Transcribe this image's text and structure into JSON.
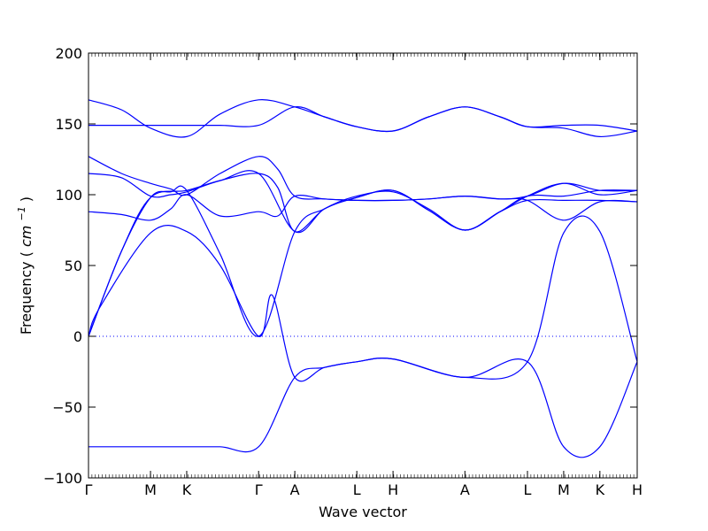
{
  "chart_data": {
    "type": "line",
    "xlabel": "Wave vector",
    "ylabel": "Frequency",
    "ylabel_unit": "cm",
    "ylabel_unit_exp": "−1",
    "ylim": [
      -100,
      200
    ],
    "yticks": [
      -100,
      -50,
      0,
      50,
      100,
      150,
      200
    ],
    "ytick_labels": [
      "−100",
      "−50",
      "0",
      "50",
      "100",
      "150",
      "200"
    ],
    "x_range": [
      0,
      1
    ],
    "high_symmetry_points": [
      {
        "label": "Γ",
        "x": 0.0
      },
      {
        "label": "M",
        "x": 0.113
      },
      {
        "label": "K",
        "x": 0.179
      },
      {
        "label": "Γ",
        "x": 0.31
      },
      {
        "label": "A",
        "x": 0.376
      },
      {
        "label": "L",
        "x": 0.489
      },
      {
        "label": "H",
        "x": 0.555
      },
      {
        "label": "A",
        "x": 0.686
      },
      {
        "label": "L",
        "x": 0.8
      },
      {
        "label": "M",
        "x": 0.866
      },
      {
        "label": "K",
        "x": 0.932
      },
      {
        "label": "H",
        "x": 1.0
      }
    ],
    "zero_line": {
      "y": 0,
      "style": "dotted"
    },
    "line_color": "#0000ff",
    "series": [
      {
        "x": [
          0,
          0.06,
          0.113,
          0.179,
          0.24,
          0.31,
          0.376,
          0.43,
          0.489,
          0.555,
          0.686,
          0.8,
          0.866,
          0.932,
          1.0
        ],
        "y": [
          -78,
          -78,
          -78,
          -78,
          -78,
          -78,
          -29,
          -22,
          -18,
          -16,
          -29,
          -18,
          -78,
          -78,
          -18
        ]
      },
      {
        "x": [
          0,
          0.02,
          0.113,
          0.179,
          0.24,
          0.31,
          0.335,
          0.376,
          0.43,
          0.489,
          0.555,
          0.686,
          0.8,
          0.866,
          0.932,
          1.0
        ],
        "y": [
          0,
          20,
          73,
          74,
          50,
          0,
          29,
          -29,
          -22,
          -18,
          -16,
          -29,
          -18,
          73,
          74,
          -18
        ]
      },
      {
        "x": [
          0,
          0.06,
          0.113,
          0.15,
          0.179,
          0.24,
          0.31,
          0.376,
          0.43,
          0.489,
          0.555,
          0.62,
          0.686,
          0.75,
          0.8,
          0.866,
          0.932,
          1.0
        ],
        "y": [
          0,
          60,
          98,
          102,
          103,
          58,
          0,
          74,
          90,
          98,
          103,
          89,
          75,
          88,
          96,
          96,
          96,
          95
        ]
      },
      {
        "x": [
          0,
          0.06,
          0.113,
          0.179,
          0.24,
          0.31,
          0.376,
          0.43,
          0.489,
          0.555,
          0.62,
          0.686,
          0.75,
          0.8,
          0.866,
          0.932,
          1.0
        ],
        "y": [
          0,
          60,
          98,
          103,
          110,
          115,
          74,
          90,
          98,
          103,
          89,
          75,
          88,
          99,
          99,
          103,
          103
        ]
      },
      {
        "x": [
          0,
          0.06,
          0.113,
          0.15,
          0.179,
          0.24,
          0.31,
          0.345,
          0.376,
          0.43,
          0.489,
          0.555,
          0.62,
          0.686,
          0.75,
          0.8,
          0.866,
          0.932,
          1.0
        ],
        "y": [
          88,
          86,
          82,
          90,
          100,
          85,
          88,
          85,
          99,
          97,
          96,
          96,
          97,
          99,
          97,
          96,
          82,
          95,
          95
        ]
      },
      {
        "x": [
          0,
          0.06,
          0.113,
          0.15,
          0.179,
          0.24,
          0.31,
          0.345,
          0.376,
          0.43,
          0.489,
          0.555,
          0.62,
          0.686,
          0.75,
          0.8,
          0.866,
          0.932,
          1.0
        ],
        "y": [
          115,
          112,
          99,
          100,
          102,
          110,
          115,
          105,
          74,
          90,
          99,
          102,
          90,
          75,
          88,
          99,
          108,
          100,
          103
        ]
      },
      {
        "x": [
          0,
          0.06,
          0.113,
          0.15,
          0.179,
          0.24,
          0.31,
          0.345,
          0.376,
          0.43,
          0.489,
          0.555,
          0.62,
          0.686,
          0.75,
          0.8,
          0.866,
          0.932,
          1.0
        ],
        "y": [
          127,
          115,
          108,
          104,
          100,
          115,
          127,
          118,
          99,
          97,
          96,
          96,
          97,
          99,
          97,
          99,
          108,
          103,
          103
        ]
      },
      {
        "x": [
          0,
          0.06,
          0.113,
          0.179,
          0.24,
          0.31,
          0.376,
          0.43,
          0.489,
          0.555,
          0.62,
          0.686,
          0.75,
          0.8,
          0.866,
          0.932,
          1.0
        ],
        "y": [
          149,
          149,
          149,
          149,
          149,
          149,
          162,
          155,
          148,
          145,
          155,
          162,
          155,
          148,
          149,
          149,
          145
        ]
      },
      {
        "x": [
          0,
          0.06,
          0.113,
          0.179,
          0.24,
          0.31,
          0.376,
          0.43,
          0.489,
          0.555,
          0.62,
          0.686,
          0.75,
          0.8,
          0.866,
          0.932,
          1.0
        ],
        "y": [
          167,
          160,
          147,
          141,
          157,
          167,
          162,
          155,
          148,
          145,
          155,
          162,
          155,
          148,
          147,
          141,
          145
        ]
      }
    ]
  }
}
